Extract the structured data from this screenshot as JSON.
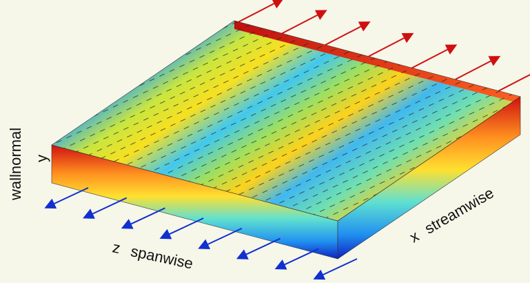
{
  "axes": {
    "wallnormal": "wallnormal",
    "y": "y",
    "z": "z spanwise",
    "x": "x streamwise"
  }
}
